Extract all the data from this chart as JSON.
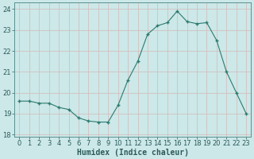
{
  "x": [
    0,
    1,
    2,
    3,
    4,
    5,
    6,
    7,
    8,
    9,
    10,
    11,
    12,
    13,
    14,
    15,
    16,
    17,
    18,
    19,
    20,
    21,
    22,
    23
  ],
  "y": [
    19.6,
    19.6,
    19.5,
    19.5,
    19.3,
    19.2,
    18.8,
    18.65,
    18.6,
    18.6,
    19.4,
    20.6,
    21.5,
    22.8,
    23.2,
    23.35,
    23.9,
    23.4,
    23.3,
    23.35,
    22.5,
    21.0,
    20.0,
    19.0
  ],
  "xlabel": "Humidex (Indice chaleur)",
  "ylim": [
    17.9,
    24.3
  ],
  "yticks": [
    18,
    19,
    20,
    21,
    22,
    23,
    24
  ],
  "xlim": [
    -0.5,
    23.5
  ],
  "line_color": "#2d7a6e",
  "bg_color": "#cce8e8",
  "grid_color_h": "#d4b8b8",
  "grid_color_v": "#d4b8b8",
  "plot_bg": "#cce8e8",
  "tick_label_color": "#2d5a5a",
  "xlabel_color": "#2d5a5a",
  "xlabel_fontsize": 7,
  "tick_fontsize": 6
}
